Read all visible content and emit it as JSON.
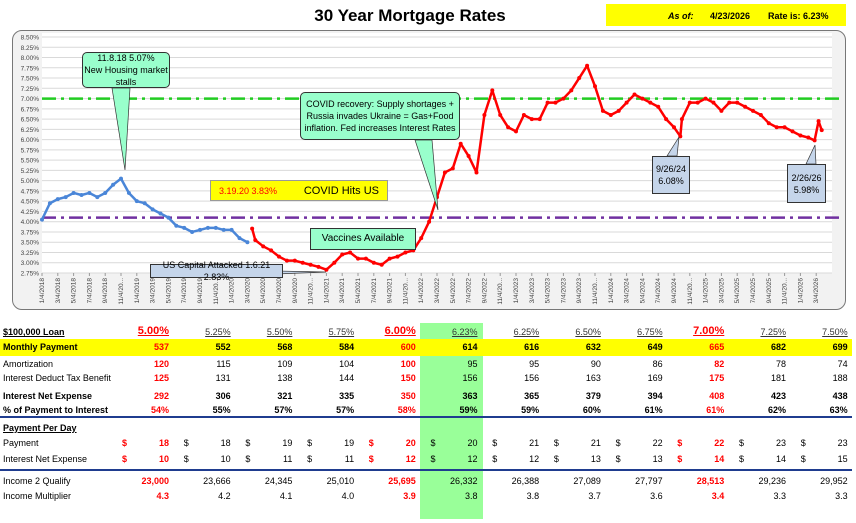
{
  "header": {
    "title": "30 Year Mortgage Rates",
    "as_of_label": "As of:",
    "as_of_date": "4/23/2026",
    "rate_label": "Rate is: 6.23%"
  },
  "chart_data": {
    "type": "line",
    "title": "30 Year Mortgage Rates",
    "ylim": [
      2.75,
      8.5
    ],
    "yticks": [
      "8.50%",
      "8.25%",
      "8.00%",
      "7.75%",
      "7.50%",
      "7.25%",
      "7.00%",
      "6.75%",
      "6.50%",
      "6.25%",
      "6.00%",
      "5.75%",
      "5.50%",
      "5.25%",
      "5.00%",
      "4.75%",
      "4.50%",
      "4.25%",
      "4.00%",
      "3.75%",
      "3.50%",
      "3.25%",
      "3.00%",
      "2.75%"
    ],
    "xticks": [
      "1/4/2018",
      "3/4/2018",
      "5/4/2018",
      "7/4/2018",
      "9/4/2018",
      "11/4/20...",
      "1/4/2019",
      "3/4/2019",
      "5/4/2019",
      "7/4/2019",
      "9/4/2019",
      "11/4/20...",
      "1/4/2020",
      "3/4/2020",
      "5/4/2020",
      "7/4/2020",
      "9/4/2020",
      "11/4/20...",
      "1/4/2021",
      "3/4/2021",
      "5/4/2021",
      "7/4/2021",
      "9/4/2021",
      "11/4/20...",
      "1/4/2022",
      "3/4/2022",
      "5/4/2022",
      "7/4/2022",
      "9/4/2022",
      "11/4/20...",
      "1/4/2023",
      "3/4/2023",
      "5/4/2023",
      "7/4/2023",
      "9/4/2023",
      "11/4/20...",
      "1/4/2024",
      "3/4/2024",
      "5/4/2024",
      "7/4/2024",
      "9/4/2024",
      "11/4/20...",
      "1/4/2025",
      "3/4/2025",
      "5/4/2025",
      "7/4/2025",
      "9/4/2025",
      "11/4/20...",
      "1/4/2026",
      "3/4/2026"
    ],
    "start_month": "2018-01",
    "series": [
      {
        "name": "Pre-COVID",
        "color": "#4a86d8",
        "months_from_start": [
          0,
          1,
          2,
          3,
          4,
          5,
          6,
          7,
          8,
          9,
          10,
          11,
          12,
          13,
          14,
          15,
          16,
          17,
          18,
          19,
          20,
          21,
          22,
          23,
          24,
          25,
          26
        ],
        "values": [
          4.05,
          4.45,
          4.55,
          4.6,
          4.7,
          4.65,
          4.7,
          4.6,
          4.7,
          4.9,
          5.05,
          4.7,
          4.5,
          4.45,
          4.3,
          4.2,
          4.1,
          3.9,
          3.85,
          3.75,
          3.8,
          3.85,
          3.85,
          3.8,
          3.8,
          3.6,
          3.5
        ]
      },
      {
        "name": "Post-COVID",
        "color": "#ff0000",
        "months_from_start": [
          26.6,
          27,
          28,
          29,
          30,
          31,
          32,
          33,
          34,
          35,
          36,
          37,
          38,
          39,
          40,
          41,
          42,
          43,
          44,
          45,
          46,
          47,
          48,
          49,
          50,
          51,
          52,
          53,
          54,
          55,
          56,
          57,
          58,
          59,
          60,
          61,
          62,
          63,
          64,
          65,
          66,
          67,
          68,
          69,
          70,
          71,
          72,
          73,
          74,
          75,
          76,
          77,
          78,
          79,
          80,
          80.8,
          81,
          82,
          83,
          84,
          85,
          86,
          87,
          88,
          89,
          90,
          91,
          92,
          93,
          94,
          95,
          96,
          97,
          97.8,
          98.3,
          98.7
        ],
        "values": [
          3.83,
          3.55,
          3.4,
          3.3,
          3.15,
          3.05,
          3.05,
          3.0,
          2.95,
          2.9,
          2.83,
          3.0,
          3.2,
          3.25,
          3.1,
          3.1,
          3.0,
          2.95,
          3.1,
          3.15,
          3.25,
          3.3,
          3.6,
          4.0,
          4.6,
          5.2,
          5.3,
          5.9,
          5.6,
          5.2,
          6.6,
          7.2,
          6.6,
          6.3,
          6.2,
          6.6,
          6.5,
          6.5,
          6.9,
          6.9,
          7.0,
          7.2,
          7.5,
          7.8,
          7.3,
          6.7,
          6.6,
          6.7,
          6.9,
          7.1,
          7.0,
          6.9,
          6.8,
          6.5,
          6.3,
          6.08,
          6.5,
          6.9,
          6.9,
          7.0,
          6.9,
          6.7,
          6.9,
          6.9,
          6.8,
          6.7,
          6.6,
          6.4,
          6.3,
          6.3,
          6.2,
          6.1,
          6.05,
          5.98,
          6.45,
          6.23
        ]
      }
    ],
    "reference_lines": [
      {
        "value": 7.0,
        "color": "#22cc22"
      },
      {
        "value": 4.1,
        "color": "#7030a0"
      }
    ],
    "annotations": [
      {
        "line1": "11.8.18 5.07%",
        "line2": "New Housing market stalls"
      },
      {
        "line1": "COVID recovery: Supply shortages +",
        "line2": "Russia invades Ukraine = Gas+Food",
        "line3": "inflation. Fed increases Interest Rates"
      },
      {
        "date": "3.19.20  3.83%",
        "text": "COVID Hits US"
      },
      {
        "text": "Vaccines Available"
      },
      {
        "text": "US Capital Attacked 1.6.21 2.83%"
      },
      {
        "line1": "9/26/24",
        "line2": "6.08%"
      },
      {
        "line1": "2/26/26",
        "line2": "5.98%"
      }
    ]
  },
  "table": {
    "title": "$100,000 Loan",
    "rates": [
      "5.00%",
      "5.25%",
      "5.50%",
      "5.75%",
      "6.00%",
      "6.23%",
      "6.25%",
      "6.50%",
      "6.75%",
      "7.00%",
      "7.25%",
      "7.50%"
    ],
    "highlight_columns": [
      0,
      4,
      9
    ],
    "current_column": 5,
    "rows": [
      {
        "label": "Monthly Payment",
        "bold": true,
        "values": [
          "537",
          "552",
          "568",
          "584",
          "600",
          "614",
          "616",
          "632",
          "649",
          "665",
          "682",
          "699"
        ]
      },
      {
        "label": "Amortization",
        "values": [
          "120",
          "115",
          "109",
          "104",
          "100",
          "95",
          "95",
          "90",
          "86",
          "82",
          "78",
          "74"
        ]
      },
      {
        "label": "Interest Deduct Tax Benefit",
        "values": [
          "125",
          "131",
          "138",
          "144",
          "150",
          "156",
          "156",
          "163",
          "169",
          "175",
          "181",
          "188"
        ]
      },
      {
        "label": "Interest Net Expense",
        "bold": true,
        "values": [
          "292",
          "306",
          "321",
          "335",
          "350",
          "363",
          "365",
          "379",
          "394",
          "408",
          "423",
          "438"
        ]
      },
      {
        "label": "% of Payment to Interest",
        "bold": true,
        "values": [
          "54%",
          "55%",
          "57%",
          "57%",
          "58%",
          "59%",
          "59%",
          "60%",
          "61%",
          "61%",
          "62%",
          "63%"
        ]
      }
    ],
    "per_day_title": "Payment Per Day",
    "currency_symbol": "$",
    "per_day_rows": [
      {
        "label": "Payment",
        "values": [
          "18",
          "18",
          "19",
          "19",
          "20",
          "20",
          "21",
          "21",
          "22",
          "22",
          "23",
          "23"
        ]
      },
      {
        "label": "Interest Net Expense",
        "values": [
          "10",
          "10",
          "11",
          "11",
          "12",
          "12",
          "12",
          "13",
          "13",
          "14",
          "14",
          "15"
        ]
      }
    ],
    "income_rows": [
      {
        "label": "Income 2 Qualify",
        "values": [
          "23,000",
          "23,666",
          "24,345",
          "25,010",
          "25,695",
          "26,332",
          "26,388",
          "27,089",
          "27,797",
          "28,513",
          "29,236",
          "29,952"
        ]
      },
      {
        "label": "Income Multiplier",
        "values": [
          "4.3",
          "4.2",
          "4.1",
          "4.0",
          "3.9",
          "3.8",
          "3.8",
          "3.7",
          "3.6",
          "3.4",
          "3.3",
          "3.3"
        ]
      }
    ]
  }
}
